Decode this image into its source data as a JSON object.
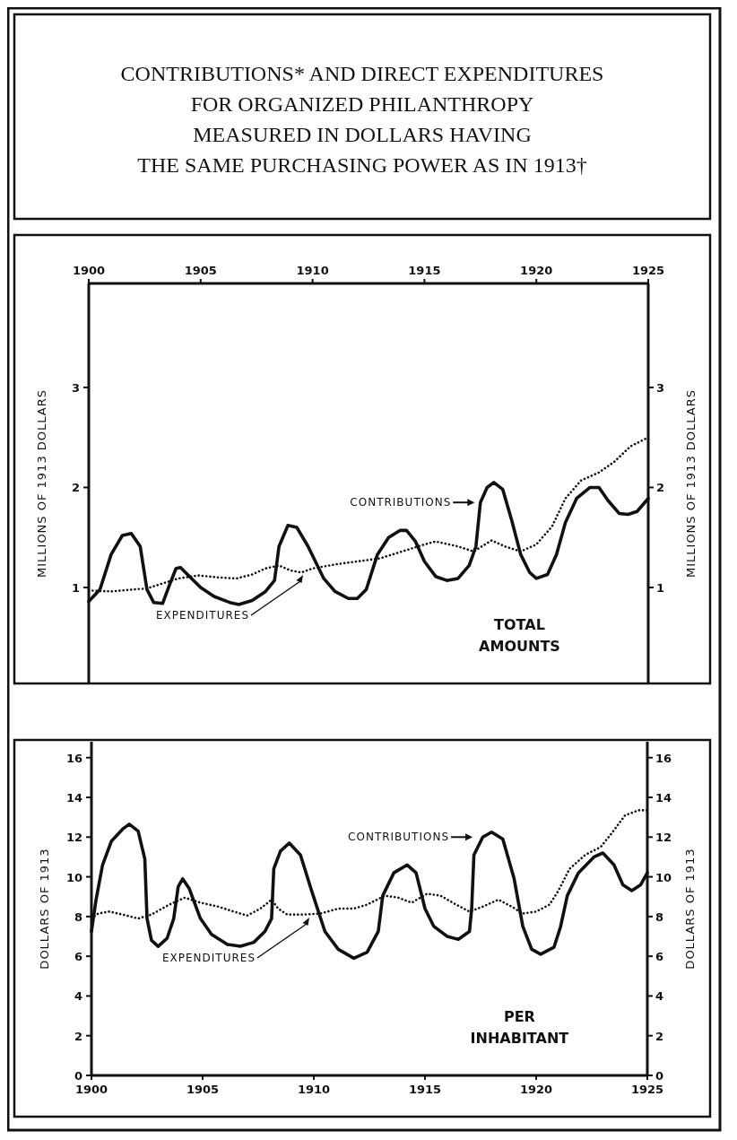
{
  "chart_data": [
    {
      "type": "line",
      "title": "CONTRIBUTIONS* AND DIRECT EXPENDITURES\nFOR ORGANIZED PHILANTHROPY\nMEASURED IN DOLLARS HAVING\nTHE SAME PURCHASING POWER AS IN 1913†",
      "ylabel": "MILLIONS OF 1913 DOLLARS",
      "y2label": "MILLIONS OF 1913 DOLLARS",
      "xlim": [
        1900,
        1925
      ],
      "xticks": [
        1900,
        1905,
        1910,
        1915,
        1920,
        1925
      ],
      "ylim": [
        0.04,
        4.04
      ],
      "yticks": [
        1,
        2,
        3
      ],
      "y2lim": [
        0.04,
        4.04
      ],
      "y2ticks": [
        1,
        2,
        3
      ],
      "grid": false,
      "annotations": [
        {
          "text": "CONTRIBUTIONS",
          "x": 1917.4,
          "y": 1.85
        },
        "EXPENDITURES",
        "TOTAL AMOUNTS"
      ],
      "series": [
        {
          "color": "#111111",
          "line_style": "solid",
          "x": [
            1900,
            1900.5,
            1901,
            1901.5,
            1901.9,
            1902.3,
            1902.6,
            1902.9,
            1903.3,
            1903.6,
            1903.9,
            1904.1,
            1904.5,
            1905,
            1905.6,
            1906.3,
            1906.7,
            1907.3,
            1907.9,
            1908.3,
            1908.5,
            1908.9,
            1909.3,
            1909.8,
            1910.5,
            1911,
            1911.6,
            1912,
            1912.4,
            1912.9,
            1913.4,
            1913.9,
            1914.2,
            1914.6,
            1915,
            1915.5,
            1916,
            1916.5,
            1917,
            1917.3,
            1917.5,
            1917.8,
            1918.1,
            1918.5,
            1918.9,
            1919.3,
            1919.7,
            1920,
            1920.5,
            1920.9,
            1921.3,
            1921.8,
            1922.4,
            1922.8,
            1923.2,
            1923.7,
            1924.1,
            1924.5,
            1925
          ],
          "values": [
            0.86,
            0.98,
            1.33,
            1.52,
            1.54,
            1.41,
            0.98,
            0.85,
            0.84,
            1.02,
            1.19,
            1.2,
            1.11,
            1.0,
            0.91,
            0.85,
            0.83,
            0.87,
            0.96,
            1.07,
            1.41,
            1.62,
            1.6,
            1.41,
            1.09,
            0.96,
            0.89,
            0.89,
            0.98,
            1.33,
            1.5,
            1.57,
            1.57,
            1.46,
            1.26,
            1.11,
            1.07,
            1.09,
            1.22,
            1.41,
            1.85,
            2.0,
            2.05,
            1.98,
            1.67,
            1.33,
            1.15,
            1.09,
            1.13,
            1.33,
            1.65,
            1.89,
            2.0,
            2.0,
            1.87,
            1.74,
            1.73,
            1.76,
            1.89
          ]
        },
        {
          "color": "#111111",
          "line_style": "dotted",
          "x": [
            1900,
            1901,
            1902,
            1902.6,
            1903.3,
            1904,
            1904.9,
            1905.8,
            1906.6,
            1907.3,
            1907.9,
            1908.5,
            1909,
            1909.5,
            1910,
            1911,
            1912,
            1913,
            1914,
            1915,
            1915.5,
            1916.5,
            1917.2,
            1918,
            1918.6,
            1919.3,
            1920,
            1920.7,
            1921.3,
            1922,
            1922.8,
            1923.5,
            1924.2,
            1925
          ],
          "values": [
            0.97,
            0.96,
            0.98,
            0.99,
            1.04,
            1.09,
            1.12,
            1.1,
            1.09,
            1.13,
            1.19,
            1.22,
            1.17,
            1.15,
            1.19,
            1.23,
            1.26,
            1.29,
            1.36,
            1.43,
            1.46,
            1.41,
            1.36,
            1.47,
            1.41,
            1.36,
            1.43,
            1.61,
            1.89,
            2.07,
            2.15,
            2.26,
            2.41,
            2.5
          ]
        }
      ]
    },
    {
      "type": "line",
      "ylabel": "DOLLARS OF 1913",
      "y2label": "DOLLARS OF 1913",
      "xlim": [
        1900,
        1925
      ],
      "xticks": [
        1900,
        1905,
        1910,
        1915,
        1920,
        1925
      ],
      "ylim": [
        0,
        16.8
      ],
      "yticks": [
        0,
        2,
        4,
        6,
        8,
        10,
        12,
        14,
        16
      ],
      "y2lim": [
        0,
        16.8
      ],
      "y2ticks": [
        0,
        2,
        4,
        6,
        8,
        10,
        12,
        14,
        16
      ],
      "grid": false,
      "annotations": [
        {
          "text": "CONTRIBUTIONS",
          "x": 1917.3,
          "y": 12.0
        },
        "EXPENDITURES",
        "PER INHABITANT"
      ],
      "series": [
        {
          "color": "#111111",
          "line_style": "solid",
          "x": [
            1900,
            1900.2,
            1900.5,
            1900.9,
            1901.4,
            1901.7,
            1902.1,
            1902.4,
            1902.5,
            1902.7,
            1903.0,
            1903.4,
            1903.7,
            1903.9,
            1904.1,
            1904.4,
            1904.9,
            1905.4,
            1906.1,
            1906.7,
            1907.3,
            1907.8,
            1908.1,
            1908.2,
            1908.5,
            1908.9,
            1909.4,
            1909.9,
            1910.5,
            1911.1,
            1911.8,
            1912.4,
            1912.9,
            1913.1,
            1913.6,
            1914.2,
            1914.6,
            1915.0,
            1915.4,
            1916.0,
            1916.5,
            1917.0,
            1917.1,
            1917.2,
            1917.6,
            1918.0,
            1918.5,
            1919.0,
            1919.4,
            1919.8,
            1920.2,
            1920.8,
            1921.1,
            1921.4,
            1921.9,
            1922.6,
            1923.0,
            1923.5,
            1923.9,
            1924.3,
            1924.7,
            1925
          ],
          "values": [
            7.25,
            8.8,
            10.6,
            11.8,
            12.4,
            12.65,
            12.3,
            10.9,
            7.9,
            6.8,
            6.5,
            6.9,
            7.9,
            9.5,
            9.9,
            9.4,
            7.9,
            7.1,
            6.6,
            6.5,
            6.7,
            7.25,
            7.9,
            10.4,
            11.3,
            11.7,
            11.1,
            9.3,
            7.25,
            6.35,
            5.9,
            6.2,
            7.25,
            9.05,
            10.2,
            10.6,
            10.2,
            8.4,
            7.5,
            7.0,
            6.85,
            7.25,
            8.4,
            11.1,
            12.0,
            12.25,
            11.9,
            9.95,
            7.5,
            6.35,
            6.1,
            6.45,
            7.5,
            9.05,
            10.2,
            11.0,
            11.2,
            10.6,
            9.6,
            9.3,
            9.6,
            10.2
          ]
        },
        {
          "color": "#111111",
          "line_style": "dotted",
          "x": [
            1900,
            1900.3,
            1900.8,
            1901.4,
            1902.1,
            1902.7,
            1903.5,
            1904.2,
            1904.9,
            1905.7,
            1906.4,
            1907.0,
            1907.6,
            1908.1,
            1908.4,
            1908.8,
            1909.5,
            1910.3,
            1911.1,
            1911.8,
            1912.4,
            1913.2,
            1913.8,
            1914.4,
            1915.1,
            1915.7,
            1916.4,
            1917.0,
            1917.6,
            1918.3,
            1918.9,
            1919.4,
            1920.0,
            1920.6,
            1921.0,
            1921.5,
            1922.2,
            1922.9,
            1923.4,
            1924.0,
            1924.6,
            1925
          ],
          "values": [
            7.9,
            8.15,
            8.25,
            8.1,
            7.9,
            8.1,
            8.6,
            8.95,
            8.7,
            8.5,
            8.25,
            8.05,
            8.4,
            8.85,
            8.4,
            8.1,
            8.1,
            8.15,
            8.4,
            8.4,
            8.6,
            9.05,
            8.95,
            8.7,
            9.15,
            9.05,
            8.6,
            8.25,
            8.5,
            8.85,
            8.5,
            8.15,
            8.25,
            8.6,
            9.3,
            10.4,
            11.1,
            11.5,
            12.2,
            13.1,
            13.35,
            13.35
          ]
        }
      ]
    }
  ]
}
